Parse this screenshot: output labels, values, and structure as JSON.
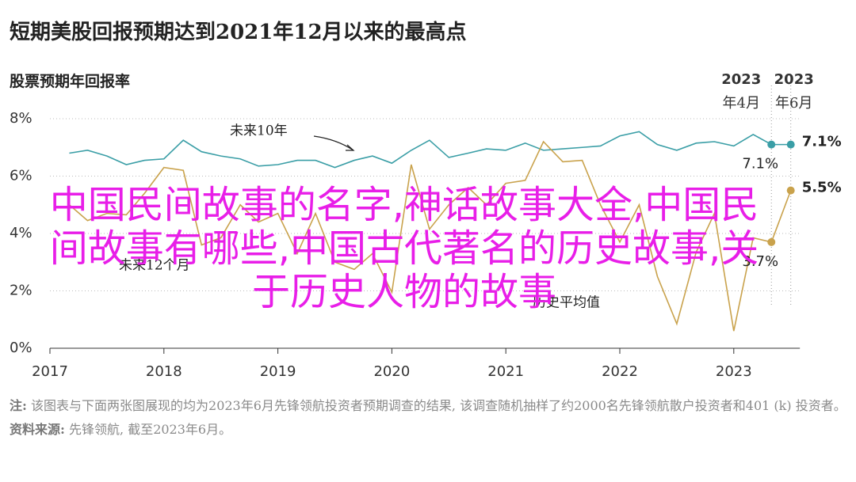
{
  "chart_data": {
    "type": "line",
    "title": "短期美股回报预期达到2021年12月以来的最高点",
    "subtitle": "股票预期年回报率",
    "x": [
      2017.17,
      2017.33,
      2017.5,
      2017.67,
      2017.83,
      2018,
      2018.17,
      2018.33,
      2018.5,
      2018.67,
      2018.83,
      2019,
      2019.17,
      2019.33,
      2019.5,
      2019.67,
      2019.83,
      2020,
      2020.17,
      2020.33,
      2020.5,
      2020.67,
      2020.83,
      2021,
      2021.17,
      2021.33,
      2021.5,
      2021.67,
      2021.83,
      2022,
      2022.17,
      2022.33,
      2022.5,
      2022.67,
      2022.83,
      2023,
      2023.17,
      2023.33,
      2023.5
    ],
    "series": [
      {
        "name": "未来10年",
        "color": "#3a9ea6",
        "values": [
          6.8,
          6.9,
          6.7,
          6.4,
          6.55,
          6.6,
          7.25,
          6.85,
          6.7,
          6.6,
          6.35,
          6.4,
          6.55,
          6.55,
          6.3,
          6.55,
          6.7,
          6.45,
          6.9,
          7.25,
          6.65,
          6.8,
          6.95,
          6.9,
          7.15,
          6.9,
          6.95,
          7.0,
          7.05,
          7.4,
          7.55,
          7.1,
          6.9,
          7.15,
          7.2,
          7.05,
          7.45,
          7.1,
          7.1
        ],
        "value_labels": [
          null,
          null,
          null,
          null,
          null,
          null,
          null,
          null,
          null,
          null,
          null,
          null,
          null,
          null,
          null,
          null,
          null,
          null,
          null,
          null,
          null,
          null,
          null,
          null,
          null,
          null,
          null,
          null,
          null,
          null,
          null,
          null,
          null,
          null,
          null,
          null,
          null,
          "7.1%",
          "7.1%"
        ]
      },
      {
        "name": "未来12个月",
        "color": "#c9a24c",
        "values": [
          5.0,
          4.45,
          4.7,
          4.65,
          5.4,
          6.3,
          6.2,
          3.6,
          3.85,
          5.0,
          4.4,
          4.7,
          3.3,
          4.7,
          3.0,
          2.75,
          3.3,
          1.95,
          6.4,
          4.15,
          5.0,
          5.6,
          5.0,
          5.75,
          5.85,
          7.2,
          6.5,
          6.55,
          5.0,
          3.7,
          5.0,
          2.5,
          0.85,
          3.35,
          4.7,
          0.6,
          3.85,
          3.7,
          5.5
        ],
        "value_labels": [
          null,
          null,
          null,
          null,
          null,
          null,
          null,
          null,
          null,
          null,
          null,
          null,
          null,
          null,
          null,
          null,
          null,
          null,
          null,
          null,
          null,
          null,
          null,
          null,
          null,
          null,
          null,
          null,
          null,
          null,
          null,
          null,
          null,
          null,
          null,
          null,
          null,
          "3.7%",
          "5.5%"
        ]
      }
    ],
    "annotations": [
      "历史平均值"
    ],
    "period_markers": [
      {
        "x": 2023.33,
        "year": "2023",
        "month": "年4月"
      },
      {
        "x": 2023.5,
        "year": "2023",
        "month": "年6月"
      }
    ],
    "xlim": [
      2017,
      2023.58
    ],
    "xticks": [
      2017,
      2018,
      2019,
      2020,
      2021,
      2022,
      2023
    ],
    "ylim": [
      0,
      8
    ],
    "yticks": [
      {
        "value": 0,
        "label": "0%"
      },
      {
        "value": 2,
        "label": "2%"
      },
      {
        "value": 4,
        "label": "4%"
      },
      {
        "value": 6,
        "label": "6%"
      },
      {
        "value": 8,
        "label": "8%"
      }
    ],
    "grid": true
  },
  "overlay_text": [
    "中国民间故事的名字,神话故事大全,中国民",
    "间故事有哪些,中国古代著名的历史故事,关",
    "于历史人物的故事"
  ],
  "footer": {
    "note_label": "注:",
    "note": "该图表与下面两张图展现的均为2023年6月先锋领航投资者预期调查的结果, 该调查随机抽样了约2000名先锋领航散户投资者和401 (k) 投资者。",
    "source_label": "资料来源:",
    "source": "先锋领航, 截至2023年6月。"
  }
}
